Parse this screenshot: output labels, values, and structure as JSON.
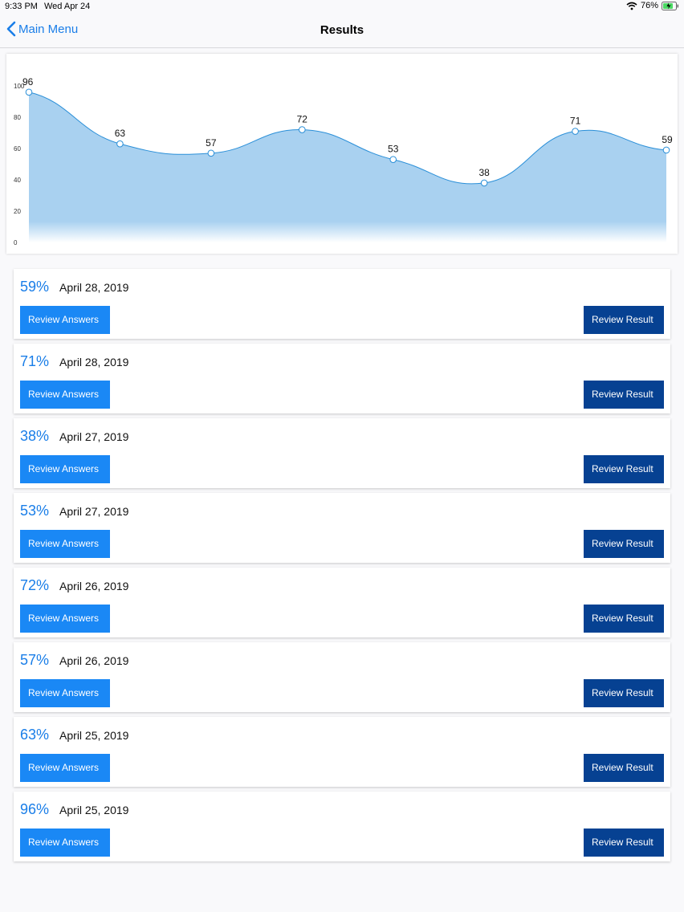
{
  "status": {
    "time": "9:33 PM",
    "date": "Wed Apr 24",
    "battery": "76%"
  },
  "nav": {
    "back_label": "Main Menu",
    "title": "Results"
  },
  "colors": {
    "accent": "#1a7ee8",
    "answers_button": "#1a88f5",
    "result_button": "#064192",
    "chart_fill": "#a9d1f0",
    "chart_line": "#2a8fd8"
  },
  "chart_data": {
    "type": "area",
    "x": [
      1,
      2,
      3,
      4,
      5,
      6,
      7,
      8
    ],
    "values": [
      96,
      63,
      57,
      72,
      53,
      38,
      71,
      59
    ],
    "data_labels": [
      "96",
      "63",
      "57",
      "72",
      "53",
      "38",
      "71",
      "59"
    ],
    "ylim": [
      0,
      100
    ],
    "yticks": [
      0,
      20,
      40,
      60,
      80,
      100
    ],
    "ytick_labels": [
      "0",
      "20",
      "40",
      "60",
      "80",
      "100"
    ],
    "curve": "smooth",
    "markers": "hollow-circle",
    "grid": false,
    "legend": "none"
  },
  "results": [
    {
      "score": "59%",
      "date": "April 28, 2019",
      "answers_label": "Review Answers",
      "result_label": "Review Result"
    },
    {
      "score": "71%",
      "date": "April 28, 2019",
      "answers_label": "Review Answers",
      "result_label": "Review Result"
    },
    {
      "score": "38%",
      "date": "April 27, 2019",
      "answers_label": "Review Answers",
      "result_label": "Review Result"
    },
    {
      "score": "53%",
      "date": "April 27, 2019",
      "answers_label": "Review Answers",
      "result_label": "Review Result"
    },
    {
      "score": "72%",
      "date": "April 26, 2019",
      "answers_label": "Review Answers",
      "result_label": "Review Result"
    },
    {
      "score": "57%",
      "date": "April 26, 2019",
      "answers_label": "Review Answers",
      "result_label": "Review Result"
    },
    {
      "score": "63%",
      "date": "April 25, 2019",
      "answers_label": "Review Answers",
      "result_label": "Review Result"
    },
    {
      "score": "96%",
      "date": "April 25, 2019",
      "answers_label": "Review Answers",
      "result_label": "Review Result"
    }
  ]
}
